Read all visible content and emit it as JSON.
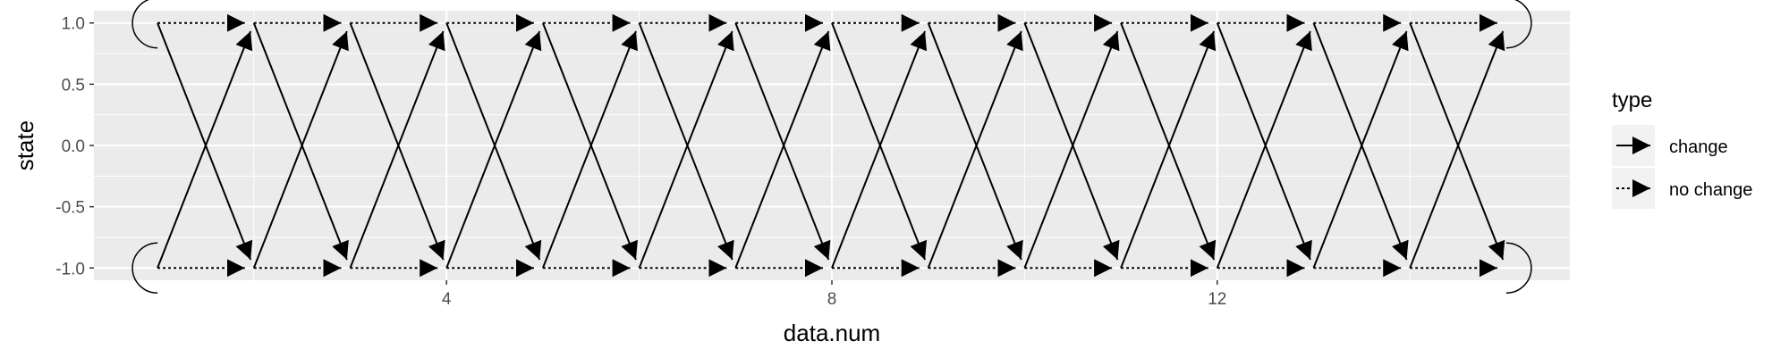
{
  "chart_data": {
    "type": "line",
    "title": "",
    "xlabel": "data.num",
    "ylabel": "state",
    "xlim": [
      0.34,
      15.66
    ],
    "ylim": [
      -1.1,
      1.1
    ],
    "x_ticks": [
      4,
      8,
      12
    ],
    "x_tick_labels": [
      "4",
      "8",
      "12"
    ],
    "y_ticks": [
      1.0,
      0.5,
      0.0,
      -0.5,
      -1.0
    ],
    "y_tick_labels": [
      "1.0",
      "0.5",
      "0.0",
      "-0.5",
      "-1.0"
    ],
    "grid": true,
    "legend": {
      "title": "type",
      "position": "right",
      "entries": [
        {
          "label": "change",
          "linetype": "solid"
        },
        {
          "label": "no change",
          "linetype": "dotted"
        }
      ]
    },
    "states": [
      1,
      -1
    ],
    "x": [
      1,
      2,
      3,
      4,
      5,
      6,
      7,
      8,
      9,
      10,
      11,
      12,
      13,
      14,
      15
    ],
    "series": [
      {
        "name": "change",
        "linetype": "solid",
        "description": "arrows from each state at x to the opposite state at x+1",
        "edges_from_state": [
          1,
          -1
        ]
      },
      {
        "name": "no change",
        "linetype": "dotted",
        "description": "arrows from each state at x to the same state at x+1",
        "edges_from_state": [
          1,
          -1
        ]
      }
    ],
    "self_loops": {
      "linetype": "solid",
      "at_x": [
        1,
        15
      ],
      "states": [
        1,
        -1
      ]
    }
  }
}
